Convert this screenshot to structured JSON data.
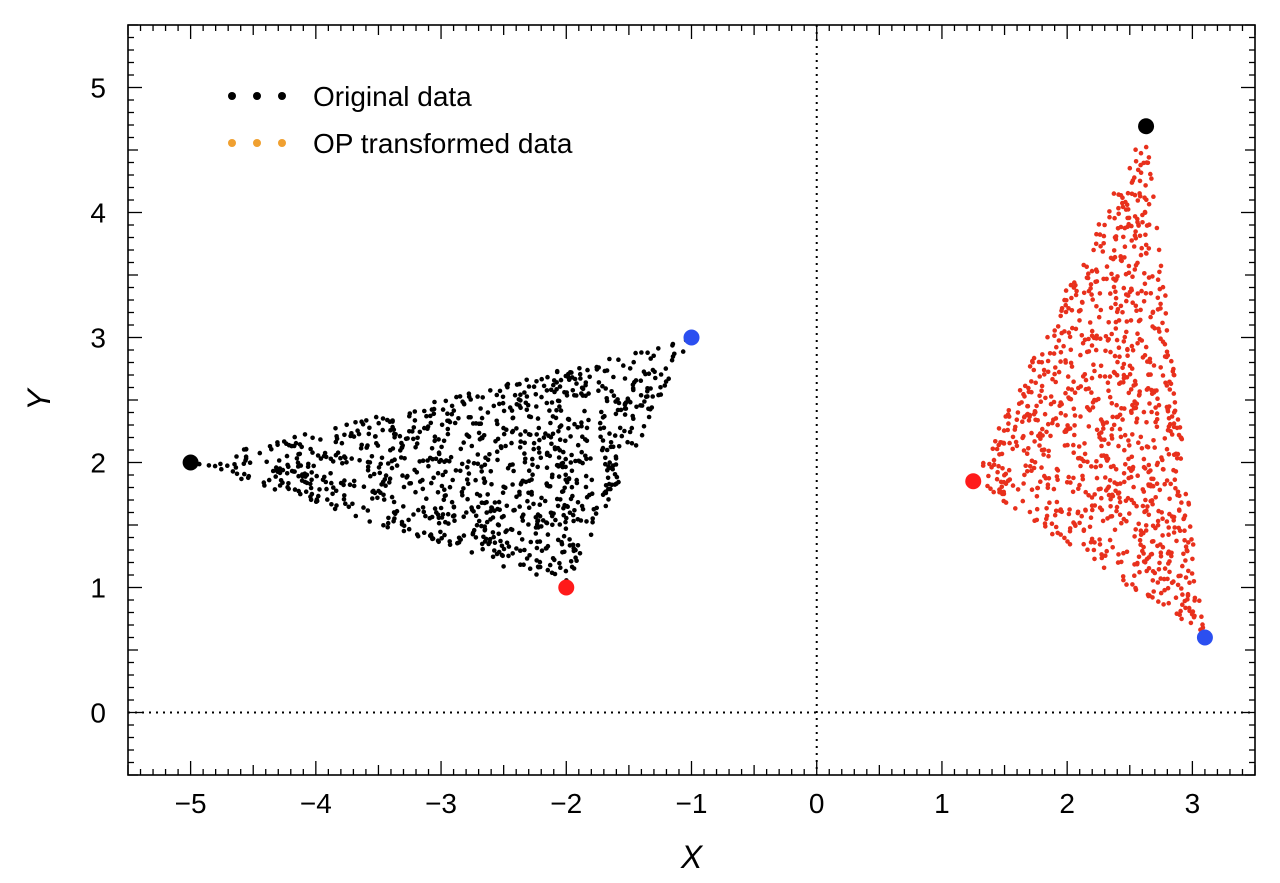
{
  "chart_data": {
    "type": "scatter",
    "title": "",
    "xlabel": "X",
    "ylabel": "Y",
    "xlim": [
      -5.5,
      3.5
    ],
    "ylim": [
      -0.5,
      5.5
    ],
    "x_ticks": [
      -5,
      -4,
      -3,
      -2,
      -1,
      0,
      1,
      2,
      3
    ],
    "y_ticks": [
      0,
      1,
      2,
      3,
      4,
      5
    ],
    "x_tick_labels": [
      "−5",
      "−4",
      "−3",
      "−2",
      "−1",
      "0",
      "1",
      "2",
      "3"
    ],
    "y_tick_labels": [
      "0",
      "1",
      "2",
      "3",
      "4",
      "5"
    ],
    "reference_lines": {
      "x": 0,
      "y": 0,
      "style": "dotted"
    },
    "grid": false,
    "legend_position": "top-left",
    "series": [
      {
        "name": "Original data",
        "color": "#000000",
        "legend_color": "#000000",
        "point_count": 1000,
        "region": "triangle",
        "vertices": [
          [
            -5,
            2
          ],
          [
            -1,
            3
          ],
          [
            -2,
            1
          ]
        ],
        "vertex_markers": [
          {
            "x": -5,
            "y": 2,
            "color": "#000000"
          },
          {
            "x": -1,
            "y": 3,
            "color": "#2b4ff0"
          },
          {
            "x": -2,
            "y": 1,
            "color": "#ff1a1a"
          }
        ]
      },
      {
        "name": "OP transformed data",
        "color": "#e8301c",
        "legend_color": "#f0a030",
        "point_count": 1000,
        "region": "triangle",
        "vertices": [
          [
            2.63,
            4.69
          ],
          [
            3.1,
            0.6
          ],
          [
            1.25,
            1.85
          ]
        ],
        "vertex_markers": [
          {
            "x": 2.63,
            "y": 4.69,
            "color": "#000000"
          },
          {
            "x": 3.1,
            "y": 0.6,
            "color": "#2b4ff0"
          },
          {
            "x": 1.25,
            "y": 1.85,
            "color": "#ff1a1a"
          }
        ]
      }
    ]
  }
}
